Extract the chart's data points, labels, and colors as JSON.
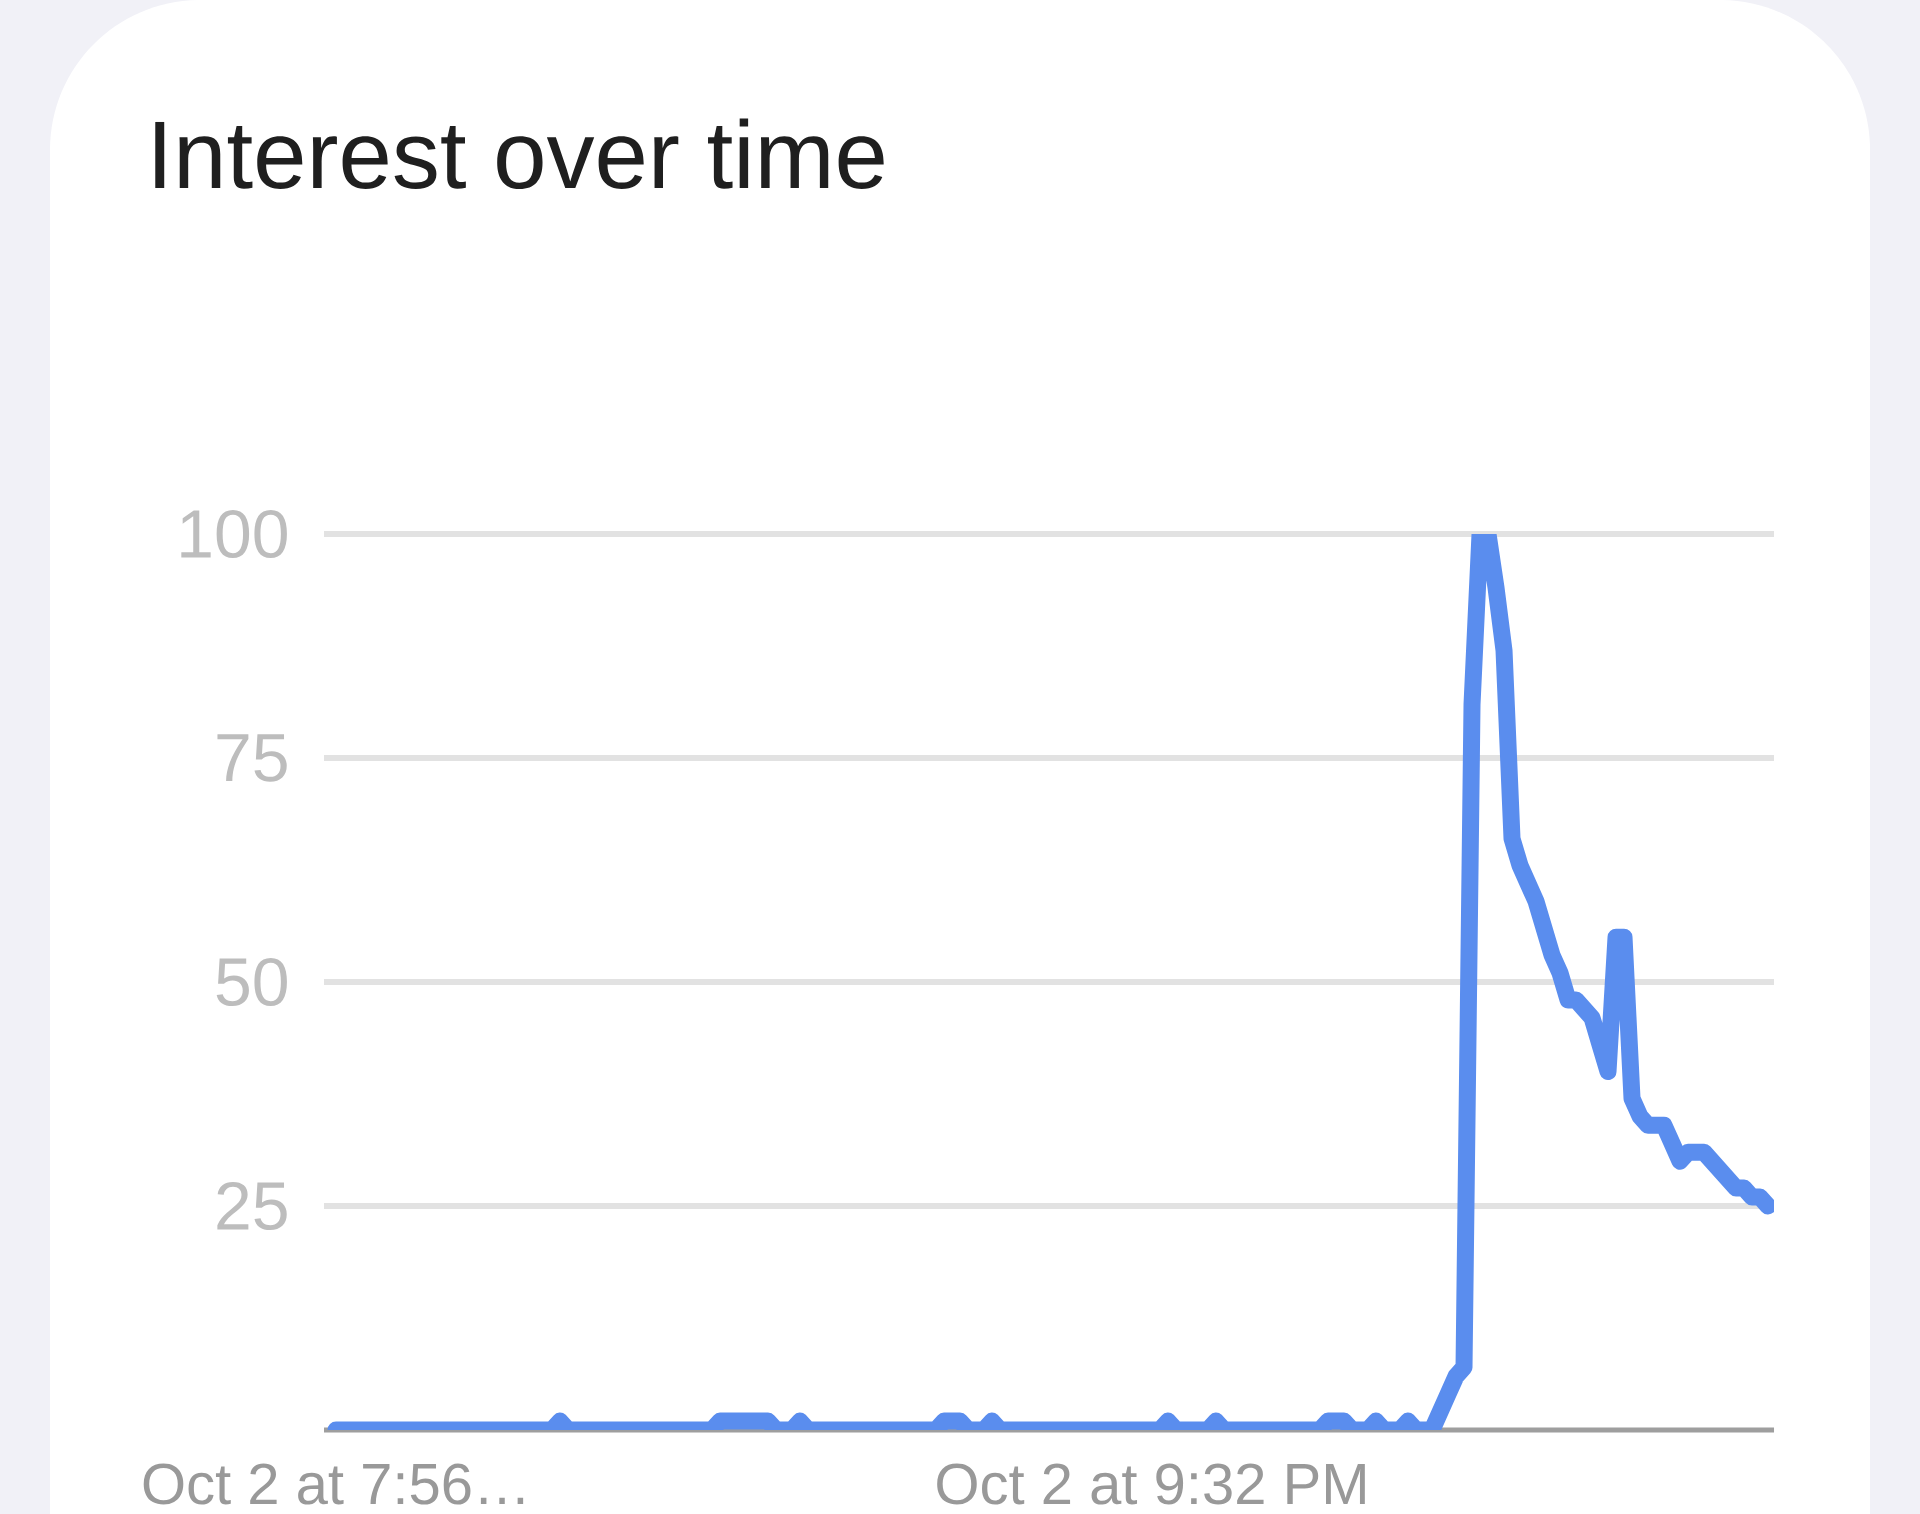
{
  "chart_data": {
    "type": "line",
    "title": "Interest over time",
    "categories": [
      "Oct 2 at 7:56…",
      null,
      null,
      null,
      null,
      null,
      null,
      null,
      null,
      null,
      null,
      null,
      null,
      null,
      null,
      null,
      null,
      null,
      null,
      null,
      null,
      null,
      null,
      null,
      null,
      null,
      null,
      null,
      null,
      null,
      null,
      null,
      null,
      null,
      null,
      null,
      null,
      null,
      null,
      null,
      null,
      null,
      null,
      null,
      null,
      null,
      null,
      null,
      null,
      null,
      null,
      null,
      null,
      null,
      null,
      null,
      null,
      null,
      null,
      null,
      null,
      null,
      null,
      null,
      null,
      null,
      null,
      null,
      null,
      null,
      null,
      null,
      null,
      null,
      null,
      null,
      null,
      null,
      null,
      null,
      null,
      null,
      null,
      null,
      null,
      null,
      null,
      null,
      null,
      null,
      null,
      null,
      null,
      null,
      null,
      null,
      null,
      null,
      null,
      null,
      null,
      null,
      "Oct 2 at 9:32 PM",
      null,
      null,
      null,
      null,
      null,
      null,
      null,
      null,
      null,
      null,
      null,
      null,
      null,
      null,
      null,
      null,
      null,
      null,
      null,
      null,
      null,
      null,
      null,
      null,
      null,
      null,
      null,
      null,
      null,
      null,
      null,
      null,
      null,
      null,
      null,
      null,
      null,
      null,
      null,
      null,
      null,
      null,
      null,
      null,
      null,
      null,
      null,
      null,
      null,
      null,
      null,
      null,
      null,
      null,
      null,
      null,
      null,
      null,
      null,
      null,
      null,
      null,
      null,
      null,
      null,
      null,
      null,
      null,
      null,
      null,
      null,
      null,
      null,
      null,
      null,
      null,
      null
    ],
    "values": [
      0,
      0,
      0,
      0,
      0,
      0,
      0,
      0,
      0,
      0,
      0,
      0,
      0,
      0,
      0,
      0,
      0,
      0,
      0,
      0,
      0,
      0,
      0,
      0,
      0,
      0,
      0,
      0,
      1,
      0,
      0,
      0,
      0,
      0,
      0,
      0,
      0,
      0,
      0,
      0,
      0,
      0,
      0,
      0,
      0,
      0,
      0,
      0,
      1,
      1,
      1,
      1,
      1,
      1,
      1,
      0,
      0,
      0,
      1,
      0,
      0,
      0,
      0,
      0,
      0,
      0,
      0,
      0,
      0,
      0,
      0,
      0,
      0,
      0,
      0,
      0,
      1,
      1,
      1,
      0,
      0,
      0,
      1,
      0,
      0,
      0,
      0,
      0,
      0,
      0,
      0,
      0,
      0,
      0,
      0,
      0,
      0,
      0,
      0,
      0,
      0,
      0,
      0,
      0,
      1,
      0,
      0,
      0,
      0,
      0,
      1,
      0,
      0,
      0,
      0,
      0,
      0,
      0,
      0,
      0,
      0,
      0,
      0,
      0,
      1,
      1,
      1,
      0,
      0,
      0,
      1,
      0,
      0,
      0,
      1,
      0,
      0,
      0,
      2,
      4,
      6,
      7,
      81,
      100,
      100,
      94,
      87,
      66,
      63,
      61,
      59,
      56,
      53,
      51,
      48,
      48,
      47,
      46,
      43,
      40,
      55,
      55,
      37,
      35,
      34,
      34,
      34,
      32,
      30,
      31,
      31,
      31,
      30,
      29,
      28,
      27,
      27,
      26,
      26,
      25
    ],
    "color": "#5a8dee",
    "ylim": [
      0,
      100
    ],
    "yticks": [
      25,
      50,
      75,
      100
    ],
    "grid": "y",
    "marker": "none",
    "line_style": "solid"
  }
}
